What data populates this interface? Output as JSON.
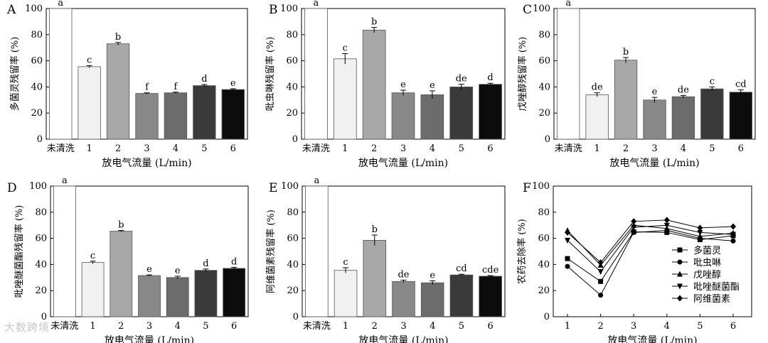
{
  "figure": {
    "watermark": "大数跨境",
    "bar_fills": [
      "#ffffff",
      "#f1f1f1",
      "#a8a8a8",
      "#888888",
      "#6c6c6c",
      "#3a3a3a",
      "#0c0c0c"
    ]
  },
  "chart_data": [
    {
      "panel": "A",
      "type": "bar",
      "title": "",
      "xlabel": "放电气流量 (L/min)",
      "ylabel": "多菌灵残留率 (%)",
      "ylim": [
        0,
        100
      ],
      "yticks": [
        0,
        20,
        40,
        60,
        80,
        100
      ],
      "categories": [
        "未清洗",
        "1",
        "2",
        "3",
        "4",
        "5",
        "6"
      ],
      "values": [
        100,
        55.5,
        73,
        35,
        35.5,
        41,
        38
      ],
      "errors": [
        0,
        0.8,
        1,
        0.5,
        0.5,
        0.8,
        0.6
      ],
      "labels": [
        "a",
        "c",
        "b",
        "f",
        "f",
        "d",
        "e"
      ]
    },
    {
      "panel": "B",
      "type": "bar",
      "title": "",
      "xlabel": "放电气流量 (L/min)",
      "ylabel": "吡虫啉残留率 (%)",
      "ylim": [
        0,
        100
      ],
      "yticks": [
        0,
        20,
        40,
        60,
        80,
        100
      ],
      "categories": [
        "未清洗",
        "1",
        "2",
        "3",
        "4",
        "5",
        "6"
      ],
      "values": [
        100,
        61.5,
        83.5,
        35.5,
        34,
        40,
        42
      ],
      "errors": [
        0,
        4,
        2,
        2,
        3,
        2,
        0.8
      ],
      "labels": [
        "a",
        "c",
        "b",
        "e",
        "e",
        "de",
        "d"
      ]
    },
    {
      "panel": "C",
      "type": "bar",
      "title": "",
      "xlabel": "放电气流量 (L/min)",
      "ylabel": "戊唑醇残留率 (%)",
      "ylim": [
        0,
        100
      ],
      "yticks": [
        0,
        20,
        40,
        60,
        80,
        100
      ],
      "categories": [
        "未清洗",
        "1",
        "2",
        "3",
        "4",
        "5",
        "6"
      ],
      "values": [
        100,
        34,
        60.5,
        30,
        32.5,
        38.5,
        36
      ],
      "errors": [
        0,
        1.5,
        2,
        2,
        1,
        1.5,
        1.8
      ],
      "labels": [
        "a",
        "de",
        "b",
        "e",
        "de",
        "c",
        "cd"
      ]
    },
    {
      "panel": "D",
      "type": "bar",
      "title": "",
      "xlabel": "放电气流量 (L/min)",
      "ylabel": "吡唑醚菌酯残留率 (%)",
      "ylim": [
        0,
        100
      ],
      "yticks": [
        0,
        20,
        40,
        60,
        80,
        100
      ],
      "categories": [
        "未清洗",
        "1",
        "2",
        "3",
        "4",
        "5",
        "6"
      ],
      "values": [
        100,
        41.5,
        65.5,
        31.5,
        30,
        35.5,
        37
      ],
      "errors": [
        0,
        1,
        0.5,
        0.5,
        1,
        1,
        0.8
      ],
      "labels": [
        "a",
        "c",
        "b",
        "e",
        "e",
        "d",
        "d"
      ]
    },
    {
      "panel": "E",
      "type": "bar",
      "title": "",
      "xlabel": "放电气流量 (L/min)",
      "ylabel": "阿维菌素残留率 (%)",
      "ylim": [
        0,
        100
      ],
      "yticks": [
        0,
        20,
        40,
        60,
        80,
        100
      ],
      "categories": [
        "未清洗",
        "1",
        "2",
        "3",
        "4",
        "5",
        "6"
      ],
      "values": [
        100,
        35.5,
        58.5,
        27,
        26,
        32,
        31
      ],
      "errors": [
        0,
        2,
        4,
        1,
        1.5,
        0.5,
        0.5
      ],
      "labels": [
        "a",
        "c",
        "b",
        "de",
        "e",
        "cd",
        "cde"
      ]
    },
    {
      "panel": "F",
      "type": "line",
      "title": "",
      "xlabel": "放电气流量 (L/min)",
      "ylabel": "农药去除率 (%)",
      "ylim": [
        0,
        100
      ],
      "yticks": [
        0,
        20,
        40,
        60,
        80,
        100
      ],
      "x": [
        1,
        2,
        3,
        4,
        5,
        6
      ],
      "legend_position": "right",
      "series": [
        {
          "name": "多菌灵",
          "marker": "square",
          "values": [
            44.5,
            27,
            65,
            64.5,
            59,
            62
          ]
        },
        {
          "name": "吡虫啉",
          "marker": "circle",
          "values": [
            38.5,
            16.5,
            64.5,
            66,
            60,
            58
          ]
        },
        {
          "name": "戊唑醇",
          "marker": "triangle-up",
          "values": [
            66,
            39.5,
            70,
            67.5,
            61.5,
            64
          ]
        },
        {
          "name": "吡唑醚菌酯",
          "marker": "triangle-down",
          "values": [
            58.5,
            34.5,
            68.5,
            70,
            64.5,
            63
          ]
        },
        {
          "name": "阿维菌素",
          "marker": "diamond",
          "values": [
            64.5,
            41.5,
            73,
            74,
            68,
            69
          ]
        }
      ]
    }
  ]
}
